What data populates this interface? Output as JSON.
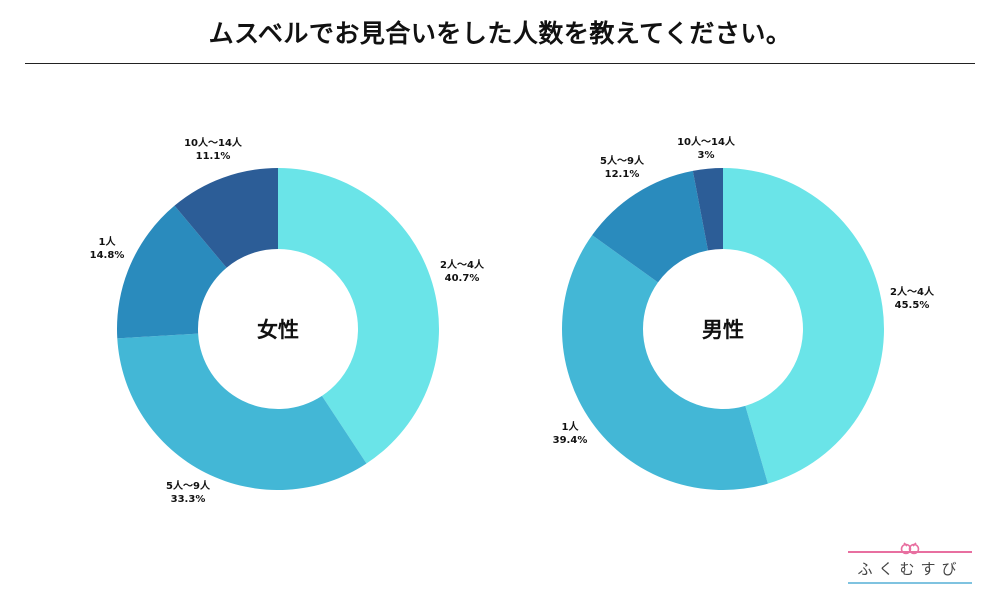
{
  "title": "ムスベルでお見合いをした人数を教えてください。",
  "colors": {
    "c1": "#6ae4e8",
    "c2": "#43b7d6",
    "c3": "#2a8bbd",
    "c4": "#2c5d97"
  },
  "chart_data": [
    {
      "type": "pie",
      "center_label": "女性",
      "slices": [
        {
          "label": "2人〜4人",
          "value": 40.7,
          "value_text": "40.7%",
          "color": "#6ae4e8"
        },
        {
          "label": "5人〜9人",
          "value": 33.3,
          "value_text": "33.3%",
          "color": "#43b7d6"
        },
        {
          "label": "1人",
          "value": 14.8,
          "value_text": "14.8%",
          "color": "#2a8bbd"
        },
        {
          "label": "10人〜14人",
          "value": 11.1,
          "value_text": "11.1%",
          "color": "#2c5d97"
        }
      ]
    },
    {
      "type": "pie",
      "center_label": "男性",
      "slices": [
        {
          "label": "2人〜4人",
          "value": 45.5,
          "value_text": "45.5%",
          "color": "#6ae4e8"
        },
        {
          "label": "1人",
          "value": 39.4,
          "value_text": "39.4%",
          "color": "#43b7d6"
        },
        {
          "label": "5人〜9人",
          "value": 12.1,
          "value_text": "12.1%",
          "color": "#2a8bbd"
        },
        {
          "label": "10人〜14人",
          "value": 3,
          "value_text": "3%",
          "color": "#2c5d97"
        }
      ]
    }
  ],
  "logo": {
    "text": "ふくむすび"
  }
}
